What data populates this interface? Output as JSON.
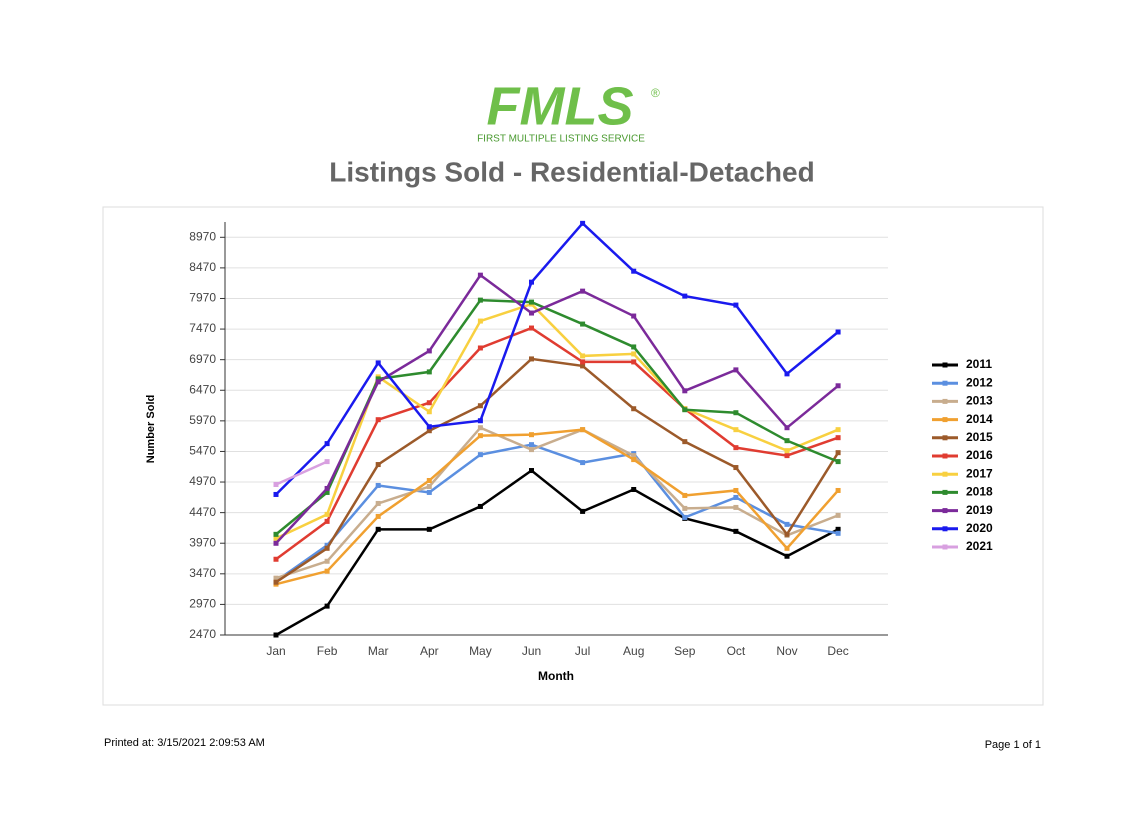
{
  "header": {
    "logo": "FMLS",
    "logo_sub": "FIRST MULTIPLE LISTING SERVICE",
    "registered": "®"
  },
  "chart_data": {
    "type": "line",
    "title": "Listings Sold - Residential-Detached",
    "x_label": "Month",
    "y_label": "Number Sold",
    "categories": [
      "Jan",
      "Feb",
      "Mar",
      "Apr",
      "May",
      "Jun",
      "Jul",
      "Aug",
      "Sep",
      "Oct",
      "Nov",
      "Dec"
    ],
    "ylim": [
      2470,
      9220
    ],
    "yticks": [
      2470,
      2970,
      3470,
      3970,
      4470,
      4970,
      5470,
      5970,
      6470,
      6970,
      7470,
      7970,
      8470,
      8970
    ],
    "grid": true,
    "legend": "right",
    "series": [
      {
        "name": "2011",
        "color": "#000000",
        "values": [
          2470,
          2942,
          4197,
          4197,
          4571,
          5158,
          4490,
          4848,
          4376,
          4164,
          3757,
          4197
        ]
      },
      {
        "name": "2012",
        "color": "#5b8fe0",
        "values": [
          3350,
          3936,
          4914,
          4800,
          5418,
          5581,
          5288,
          5435,
          4392,
          4718,
          4278,
          4132
        ]
      },
      {
        "name": "2013",
        "color": "#c8ad8e",
        "values": [
          3399,
          3675,
          4620,
          4897,
          5858,
          5500,
          5826,
          5402,
          4539,
          4555,
          4099,
          4425
        ]
      },
      {
        "name": "2014",
        "color": "#f0a030",
        "values": [
          3301,
          3513,
          4408,
          4995,
          5728,
          5744,
          5826,
          5337,
          4751,
          4832,
          3887,
          4832
        ]
      },
      {
        "name": "2015",
        "color": "#9c5a2a",
        "values": [
          3333,
          3887,
          5256,
          5809,
          6217,
          6982,
          6868,
          6168,
          5630,
          5207,
          4115,
          5450
        ]
      },
      {
        "name": "2016",
        "color": "#e03c31",
        "values": [
          3708,
          4327,
          5989,
          6266,
          7161,
          7487,
          6933,
          6933,
          6168,
          5532,
          5402,
          5695
        ]
      },
      {
        "name": "2017",
        "color": "#f8d040",
        "values": [
          4050,
          4441,
          6689,
          6119,
          7601,
          7878,
          7031,
          7064,
          6168,
          5826,
          5483,
          5826
        ]
      },
      {
        "name": "2018",
        "color": "#2e8b2e",
        "values": [
          4115,
          4800,
          6656,
          6770,
          7943,
          7911,
          7552,
          7178,
          6152,
          6103,
          5646,
          5304
        ]
      },
      {
        "name": "2019",
        "color": "#7b2a9a",
        "values": [
          3969,
          4865,
          6608,
          7113,
          8351,
          7732,
          8090,
          7683,
          6461,
          6803,
          5858,
          6543
        ]
      },
      {
        "name": "2020",
        "color": "#1a1aee",
        "values": [
          4767,
          5598,
          6917,
          5874,
          5972,
          8237,
          9198,
          8416,
          8009,
          7862,
          6738,
          7422
        ]
      },
      {
        "name": "2021",
        "color": "#d8a0e0",
        "values": [
          4930,
          5304,
          null,
          null,
          null,
          null,
          null,
          null,
          null,
          null,
          null,
          null
        ]
      }
    ]
  },
  "footer": {
    "printed": "Printed at:  3/15/2021 2:09:53 AM",
    "page": "Page 1 of 1"
  }
}
